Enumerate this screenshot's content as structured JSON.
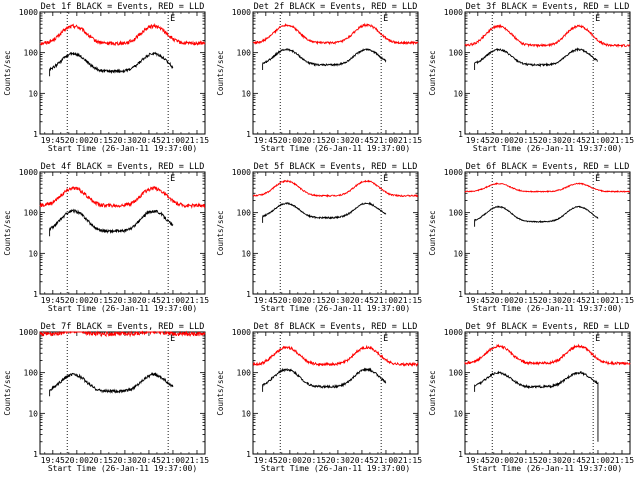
{
  "panels": [
    {
      "title": "Det 1f BLACK = Events, RED = LLD",
      "marker": "E",
      "red_base": 170,
      "red_peak": 450,
      "black_base": 35,
      "black_peak": 95,
      "red_noise": 0.1,
      "black_noise": 0.08,
      "dip": false
    },
    {
      "title": "Det 2f BLACK = Events, RED = LLD",
      "marker": "E",
      "red_base": 175,
      "red_peak": 480,
      "black_base": 50,
      "black_peak": 120,
      "red_noise": 0.06,
      "black_noise": 0.05,
      "dip": false
    },
    {
      "title": "Det 3f BLACK = Events, RED = LLD",
      "marker": "E",
      "red_base": 150,
      "red_peak": 450,
      "black_base": 50,
      "black_peak": 120,
      "red_noise": 0.06,
      "black_noise": 0.05,
      "dip": false
    },
    {
      "title": "Det 4f BLACK = Events, RED = LLD",
      "marker": "E",
      "red_base": 150,
      "red_peak": 400,
      "black_base": 35,
      "black_peak": 110,
      "red_noise": 0.1,
      "black_noise": 0.08,
      "dip": false
    },
    {
      "title": "Det 5f BLACK = Events, RED = LLD",
      "marker": "E",
      "red_base": 260,
      "red_peak": 600,
      "black_base": 75,
      "black_peak": 170,
      "red_noise": 0.04,
      "black_noise": 0.04,
      "dip": false
    },
    {
      "title": "Det 6f BLACK = Events, RED = LLD",
      "marker": "E",
      "red_base": 330,
      "red_peak": 520,
      "black_base": 60,
      "black_peak": 140,
      "red_noise": 0.03,
      "black_noise": 0.03,
      "dip": false
    },
    {
      "title": "Det 7f BLACK = Events, RED = LLD",
      "marker": "E",
      "red_base": 900,
      "red_peak": 1050,
      "black_base": 35,
      "black_peak": 90,
      "red_noise": 0.12,
      "black_noise": 0.08,
      "dip": false
    },
    {
      "title": "Det 8f BLACK = Events, RED = LLD",
      "marker": "E",
      "red_base": 160,
      "red_peak": 420,
      "black_base": 45,
      "black_peak": 120,
      "red_noise": 0.07,
      "black_noise": 0.06,
      "dip": false
    },
    {
      "title": "Det 9f BLACK = Events, RED = LLD",
      "marker": "E",
      "red_base": 170,
      "red_peak": 450,
      "black_base": 45,
      "black_peak": 100,
      "red_noise": 0.07,
      "black_noise": 0.06,
      "dip": true
    }
  ],
  "xlabel": "Start Time (26-Jan-11 19:37:00)",
  "ylabel": "Counts/sec",
  "colors": {
    "events": "#000000",
    "lld": "#ff0000",
    "axes": "#000000",
    "background": "#ffffff"
  },
  "chart_data": {
    "type": "line",
    "x_unit": "time of day (HH:MM)",
    "xlim": [
      "19:37",
      "21:20"
    ],
    "ylim": [
      1,
      1000
    ],
    "yscale": "log",
    "x_tick_labels": [
      "19:45",
      "20:00",
      "20:15",
      "20:30",
      "20:45",
      "21:00",
      "21:15"
    ],
    "y_tick_labels": [
      "1",
      "10",
      "100",
      "1000"
    ],
    "vertical_dotted_lines": [
      "19:54",
      "20:57"
    ],
    "black_segment": [
      "19:43",
      "21:00"
    ],
    "red_segment": [
      "19:37",
      "21:20"
    ],
    "peaks": [
      "19:58",
      "20:48"
    ],
    "series": [
      {
        "name": "BLACK = Events",
        "color": "#000000"
      },
      {
        "name": "RED = LLD",
        "color": "#ff0000"
      }
    ]
  }
}
